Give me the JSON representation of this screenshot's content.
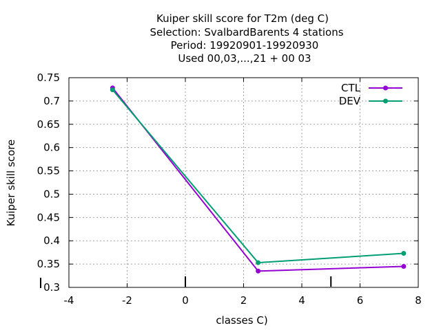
{
  "chart_data": {
    "type": "line",
    "title_lines": [
      "Kuiper skill score  for T2m (deg C)",
      "Selection: SvalbardBarents       4 stations",
      "Period: 19920901-19920930",
      "Used  00,03,...,21  + 00 03"
    ],
    "xlabel": "classes C)",
    "ylabel": "Kuiper skill score",
    "xlim": [
      -4,
      8
    ],
    "ylim": [
      0.3,
      0.75
    ],
    "xticks": [
      -4,
      -2,
      0,
      2,
      4,
      6,
      8
    ],
    "xtick_labels": [
      "-4",
      "-2",
      "0",
      "2",
      "4",
      "6",
      "8"
    ],
    "yticks": [
      0.3,
      0.35,
      0.4,
      0.45,
      0.5,
      0.55,
      0.6,
      0.65,
      0.7,
      0.75
    ],
    "ytick_labels": [
      "0.3",
      "0.35",
      "0.4",
      "0.45",
      "0.5",
      "0.55",
      "0.6",
      "0.65",
      "0.7",
      "0.75"
    ],
    "grid": true,
    "legend_position": "top-right",
    "class_marks": {
      "y_marks": [
        0.3
      ],
      "x_marks": [
        0,
        5
      ]
    },
    "series": [
      {
        "name": "CTL",
        "color": "#9400D3",
        "x": [
          -2.5,
          2.5,
          7.5
        ],
        "y": [
          0.728,
          0.335,
          0.345
        ]
      },
      {
        "name": "DEV",
        "color": "#009E73",
        "x": [
          -2.5,
          2.5,
          7.5
        ],
        "y": [
          0.724,
          0.353,
          0.373
        ]
      }
    ]
  }
}
